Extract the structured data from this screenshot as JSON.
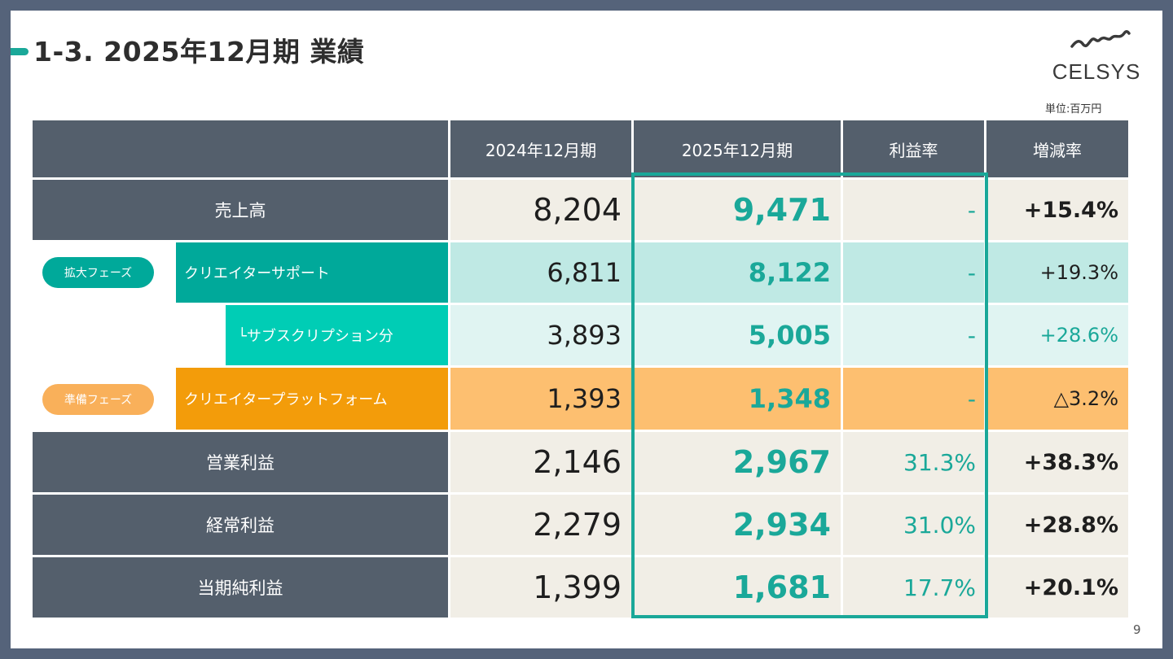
{
  "title": "1-3. 2025年12月期 業績",
  "logo": {
    "name": "celsys-logo",
    "text": "CELSYS"
  },
  "unit": "単位:百万円",
  "page_number": "9",
  "colors": {
    "accent": "#1aa899",
    "header_bg": "#545f6c",
    "teal": "#00a99a",
    "teal_light": "#00cdb5",
    "orange": "#f39c0a"
  },
  "table": {
    "headers": [
      "2024年12月期",
      "2025年12月期",
      "利益率",
      "増減率"
    ],
    "rows": [
      {
        "label": "売上高",
        "fy2024": "8,204",
        "fy2025": "9,471",
        "margin": "-",
        "change": "+15.4%"
      },
      {
        "phase": "拡大フェーズ",
        "label": "クリエイターサポート",
        "fy2024": "6,811",
        "fy2025": "8,122",
        "margin": "-",
        "change": "+19.3%"
      },
      {
        "label": "└サブスクリプション分",
        "fy2024": "3,893",
        "fy2025": "5,005",
        "margin": "-",
        "change": "+28.6%"
      },
      {
        "phase": "準備フェーズ",
        "label": "クリエイタープラットフォーム",
        "fy2024": "1,393",
        "fy2025": "1,348",
        "margin": "-",
        "change": "△3.2%"
      },
      {
        "label": "営業利益",
        "fy2024": "2,146",
        "fy2025": "2,967",
        "margin": "31.3%",
        "change": "+38.3%"
      },
      {
        "label": "経常利益",
        "fy2024": "2,279",
        "fy2025": "2,934",
        "margin": "31.0%",
        "change": "+28.8%"
      },
      {
        "label": "当期純利益",
        "fy2024": "1,399",
        "fy2025": "1,681",
        "margin": "17.7%",
        "change": "+20.1%"
      }
    ]
  }
}
